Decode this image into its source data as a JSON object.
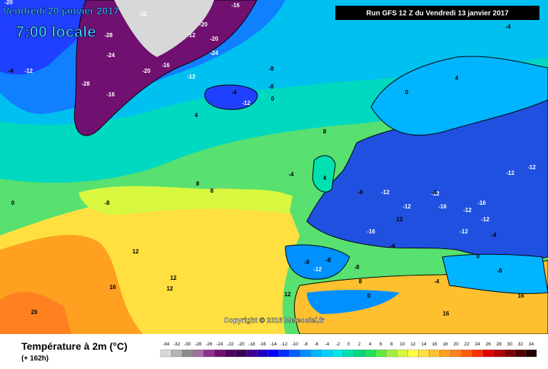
{
  "header": {
    "date": "Vendredi 20 janvier 2017",
    "time": "7:00 locale"
  },
  "run": "Run GFS 12 Z du Vendredi 13 janvier 2017",
  "copyright": "Copyright © 2016 Meteociel.fr",
  "legend": {
    "title": "Température à 2m (°C)",
    "lead": "(+ 162h)",
    "ticks": [
      -34,
      -32,
      -30,
      -28,
      -26,
      -24,
      -22,
      -20,
      -18,
      -16,
      -14,
      -12,
      -10,
      -8,
      -6,
      -4,
      -2,
      0,
      2,
      4,
      6,
      8,
      10,
      12,
      14,
      16,
      18,
      20,
      22,
      24,
      26,
      28,
      30,
      32,
      34
    ],
    "colors": [
      "#d8d8d8",
      "#b4b4b4",
      "#8c8c8c",
      "#a070a0",
      "#903090",
      "#701070",
      "#500060",
      "#3c0050",
      "#400090",
      "#2000c0",
      "#0000ff",
      "#0030ff",
      "#0060ff",
      "#0090ff",
      "#00b4ff",
      "#00d0ff",
      "#00e8e8",
      "#00e0b0",
      "#00d880",
      "#20e060",
      "#60e840",
      "#a0f040",
      "#d8f840",
      "#ffff40",
      "#ffe040",
      "#ffc030",
      "#ffa020",
      "#ff8020",
      "#ff6010",
      "#ff3000",
      "#e00000",
      "#b00000",
      "#800000",
      "#500000",
      "#200000"
    ]
  },
  "contour_labels": [
    -20,
    -32,
    -28,
    -24,
    -20,
    -16,
    -12,
    -28,
    -20,
    -16,
    -12,
    -24,
    -20,
    -16,
    -12,
    -8,
    -8,
    -4,
    -4,
    0,
    -4,
    -12,
    4,
    8,
    8,
    8,
    -8,
    12,
    12,
    16,
    20,
    -4,
    4,
    0,
    -8,
    -12,
    -12,
    -12,
    -16,
    -12,
    -16,
    -12,
    -8,
    -4,
    0,
    -8,
    -12,
    -8,
    -4,
    -12,
    -16,
    -12,
    0,
    4,
    12,
    8,
    12,
    16,
    -12,
    -4,
    0,
    -8,
    -4,
    12,
    16
  ]
}
